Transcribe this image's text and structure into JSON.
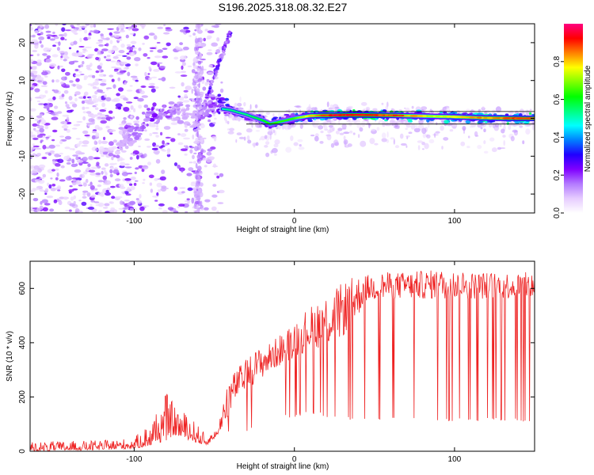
{
  "chart_data": [
    {
      "type": "heatmap",
      "title": "S196.2025.318.08.32.E27",
      "xlabel": "Height of straight line (km)",
      "ylabel": "Frequency (Hz)",
      "xlim": [
        -165,
        150
      ],
      "ylim": [
        -25,
        25
      ],
      "xticks": [
        -100,
        0,
        100
      ],
      "xtick_labels": [
        "-100",
        "0",
        "100"
      ],
      "yticks": [
        -20,
        -10,
        0,
        10,
        20
      ],
      "ytick_labels": [
        "-20",
        "-10",
        "0",
        "10",
        "20"
      ],
      "colorbar": {
        "label": "Normalized spectral amplitude",
        "range": [
          0,
          1
        ],
        "ticks": [
          0.0,
          0.2,
          0.4,
          0.6,
          0.8
        ],
        "tick_labels": [
          "0.0",
          "0.2",
          "0.4",
          "0.6",
          "0.8"
        ],
        "colors": [
          "#ffffff",
          "#e6ccff",
          "#b37aff",
          "#8000ff",
          "#2000ff",
          "#0080ff",
          "#00ffff",
          "#00ff80",
          "#00ff00",
          "#80ff00",
          "#ffff00",
          "#ff8000",
          "#ff0000",
          "#ff0080"
        ]
      },
      "ridge": {
        "description_values": "dominant frequency track (Hz) vs height (km)",
        "x": [
          -110,
          -100,
          -90,
          -80,
          -70,
          -62,
          -55,
          -50,
          -45,
          -40,
          -30,
          -20,
          -15,
          -10,
          0,
          10,
          20,
          40,
          60,
          80,
          100,
          120,
          140,
          150
        ],
        "y": [
          -7,
          -4,
          1,
          1.5,
          3,
          -1,
          2.5,
          4.5,
          2.5,
          2.2,
          1.0,
          -0.5,
          -1.5,
          -1.0,
          0.0,
          0.7,
          0.8,
          0.9,
          0.8,
          0.6,
          0.4,
          0.1,
          0.0,
          0.0
        ],
        "amplitude": [
          0.15,
          0.25,
          0.35,
          0.3,
          0.2,
          0.15,
          0.3,
          0.35,
          0.45,
          0.5,
          0.5,
          0.55,
          0.6,
          0.6,
          0.6,
          0.75,
          0.85,
          0.9,
          0.85,
          0.7,
          0.75,
          0.8,
          0.85,
          0.85
        ]
      }
    },
    {
      "type": "line",
      "xlabel": "Height of straight line (km)",
      "ylabel": "SNR (10 * v/v)",
      "xlim": [
        -165,
        150
      ],
      "ylim": [
        0,
        700
      ],
      "xticks": [
        -100,
        0,
        100
      ],
      "xtick_labels": [
        "-100",
        "0",
        "100"
      ],
      "yticks": [
        0,
        200,
        400,
        600
      ],
      "ytick_labels": [
        "0",
        "200",
        "400",
        "600"
      ],
      "line_color": "#ee2222",
      "envelope": {
        "x": [
          -165,
          -120,
          -100,
          -90,
          -80,
          -75,
          -65,
          -55,
          -48,
          -42,
          -35,
          -25,
          -15,
          -5,
          5,
          15,
          25,
          35,
          45,
          55,
          70,
          90,
          110,
          130,
          150
        ],
        "upper": [
          35,
          40,
          50,
          110,
          220,
          170,
          130,
          60,
          80,
          260,
          310,
          370,
          400,
          450,
          510,
          560,
          600,
          640,
          650,
          660,
          660,
          670,
          660,
          660,
          660
        ],
        "lower": [
          0,
          5,
          10,
          20,
          40,
          60,
          40,
          20,
          60,
          120,
          200,
          250,
          290,
          330,
          360,
          380,
          390,
          450,
          550,
          560,
          560,
          560,
          560,
          560,
          560
        ],
        "dropout_floor": [
          20,
          20,
          20,
          20,
          20,
          20,
          20,
          20,
          20,
          60,
          60,
          80,
          100,
          120,
          130,
          130,
          120,
          110,
          110,
          110,
          110,
          110,
          110,
          110,
          110
        ]
      }
    }
  ]
}
